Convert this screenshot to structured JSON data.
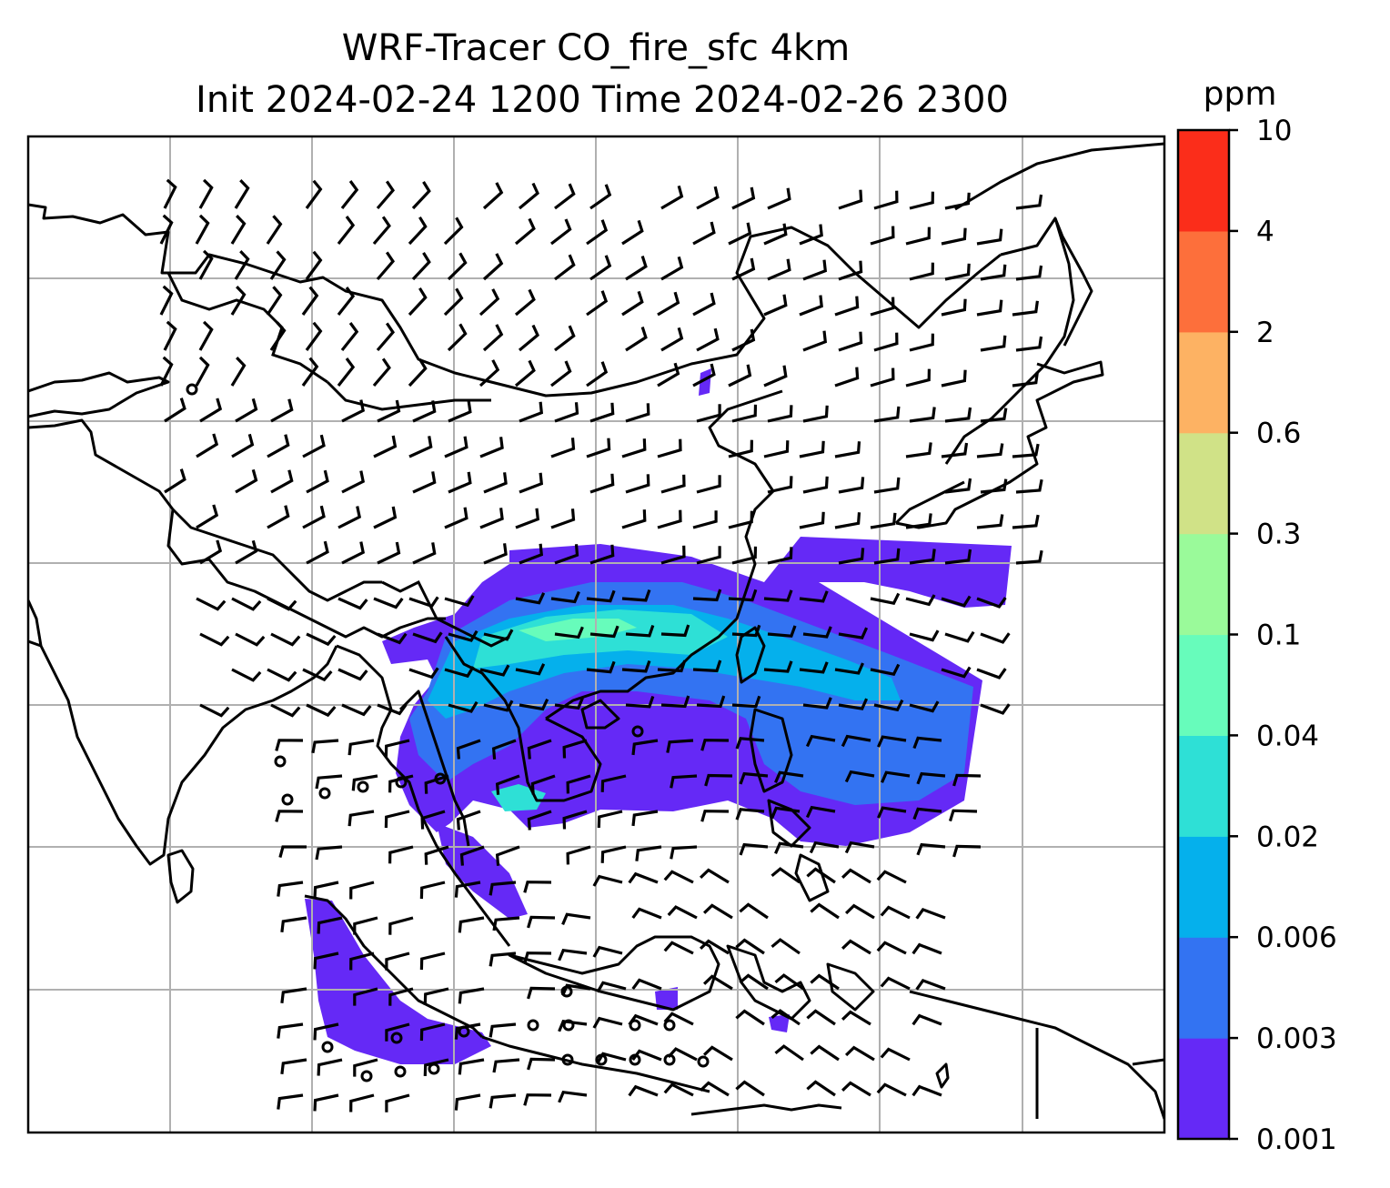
{
  "figure": {
    "title_line1": "WRF-Tracer CO_fire_sfc 4km",
    "title_line2": "Init 2024-02-24 1200 Time 2024-02-26 2300"
  },
  "map": {
    "gridlines": "on",
    "grid_color": "#b0b0b0",
    "coastline_color": "#000000",
    "barb_color": "#000000",
    "layers": [
      "coastlines",
      "country-borders",
      "wind-barbs",
      "co-tracer-shading"
    ]
  },
  "colorbar": {
    "unit": "ppm",
    "placement": "right",
    "levels": [
      {
        "label": "0.001",
        "color": "#6529f6"
      },
      {
        "label": "0.003",
        "color": "#3373f2"
      },
      {
        "label": "0.006",
        "color": "#05b0ec"
      },
      {
        "label": "0.02",
        "color": "#2ee0d6"
      },
      {
        "label": "0.04",
        "color": "#67fcbb"
      },
      {
        "label": "0.1",
        "color": "#9afa9a"
      },
      {
        "label": "0.3",
        "color": "#d0e287"
      },
      {
        "label": "0.6",
        "color": "#fdb263"
      },
      {
        "label": "2",
        "color": "#fd6f3b"
      },
      {
        "label": "4",
        "color": "#fb2d1a"
      },
      {
        "label": "10",
        "color": ""
      }
    ]
  }
}
